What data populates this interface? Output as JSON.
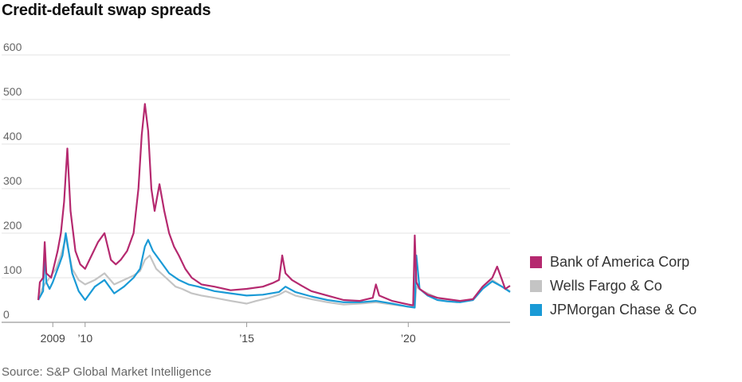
{
  "title": "Credit-default swap spreads",
  "source": "Source: S&P Global Market Intelligence",
  "chart_data": {
    "type": "line",
    "title": "Credit-default swap spreads",
    "xlabel": "",
    "ylabel": "",
    "ylim": [
      0,
      600
    ],
    "xlim": [
      2008.55,
      2023.15
    ],
    "yticks": [
      "600",
      "500",
      "400",
      "300",
      "200",
      "100",
      "0"
    ],
    "ytick_values": [
      600,
      500,
      400,
      300,
      200,
      100,
      0
    ],
    "xticks": [
      {
        "value": 2009,
        "label": "2009"
      },
      {
        "value": 2010,
        "label": "’10"
      },
      {
        "value": 2015,
        "label": "’15"
      },
      {
        "value": 2020,
        "label": "’20"
      }
    ],
    "grid": true,
    "legend_position": "right",
    "series": [
      {
        "name": "Wells Fargo & Co",
        "color": "#c4c4c4",
        "x": [
          2008.55,
          2008.7,
          2008.85,
          2009.0,
          2009.1,
          2009.25,
          2009.4,
          2009.6,
          2009.8,
          2010.0,
          2010.3,
          2010.6,
          2010.9,
          2011.2,
          2011.5,
          2011.7,
          2011.85,
          2012.0,
          2012.2,
          2012.5,
          2012.8,
          2013.0,
          2013.3,
          2013.6,
          2014.0,
          2014.5,
          2015.0,
          2015.3,
          2015.7,
          2016.0,
          2016.2,
          2016.5,
          2017.0,
          2017.5,
          2018.0,
          2018.5,
          2019.0,
          2019.5,
          2020.0,
          2020.2,
          2020.25,
          2020.4,
          2020.6,
          2020.9,
          2021.2,
          2021.5,
          2022.0,
          2022.3,
          2022.6,
          2022.9,
          2023.15
        ],
        "values": [
          55,
          80,
          95,
          110,
          120,
          150,
          190,
          120,
          95,
          85,
          95,
          110,
          85,
          95,
          105,
          115,
          140,
          150,
          120,
          100,
          80,
          75,
          65,
          60,
          55,
          48,
          42,
          48,
          55,
          62,
          70,
          60,
          52,
          45,
          40,
          42,
          45,
          40,
          35,
          36,
          80,
          72,
          65,
          55,
          48,
          45,
          50,
          75,
          95,
          80,
          70
        ]
      },
      {
        "name": "JPMorgan Chase & Co",
        "color": "#1a9ad6",
        "x": [
          2008.55,
          2008.7,
          2008.75,
          2008.8,
          2008.9,
          2009.0,
          2009.1,
          2009.2,
          2009.3,
          2009.4,
          2009.6,
          2009.8,
          2010.0,
          2010.3,
          2010.6,
          2010.9,
          2011.2,
          2011.5,
          2011.7,
          2011.85,
          2011.95,
          2012.1,
          2012.3,
          2012.6,
          2012.9,
          2013.2,
          2013.5,
          2014.0,
          2014.5,
          2015.0,
          2015.5,
          2016.0,
          2016.2,
          2016.5,
          2017.0,
          2017.5,
          2018.0,
          2018.5,
          2019.0,
          2019.5,
          2020.0,
          2020.2,
          2020.25,
          2020.35,
          2020.6,
          2020.9,
          2021.2,
          2021.6,
          2022.0,
          2022.3,
          2022.6,
          2022.9,
          2023.15
        ],
        "values": [
          50,
          70,
          160,
          90,
          75,
          90,
          110,
          130,
          150,
          200,
          110,
          70,
          50,
          80,
          95,
          65,
          80,
          100,
          120,
          170,
          185,
          160,
          140,
          110,
          95,
          85,
          80,
          70,
          65,
          60,
          62,
          68,
          80,
          68,
          58,
          50,
          45,
          45,
          48,
          42,
          35,
          33,
          150,
          75,
          60,
          50,
          47,
          45,
          50,
          75,
          92,
          80,
          68
        ]
      },
      {
        "name": "Bank of America Corp",
        "color": "#b5296f",
        "x": [
          2008.55,
          2008.6,
          2008.7,
          2008.75,
          2008.8,
          2008.95,
          2009.05,
          2009.15,
          2009.25,
          2009.35,
          2009.45,
          2009.55,
          2009.7,
          2009.85,
          2010.0,
          2010.2,
          2010.4,
          2010.6,
          2010.8,
          2010.95,
          2011.1,
          2011.3,
          2011.5,
          2011.65,
          2011.75,
          2011.85,
          2011.95,
          2012.05,
          2012.15,
          2012.3,
          2012.45,
          2012.6,
          2012.75,
          2012.9,
          2013.1,
          2013.3,
          2013.6,
          2014.0,
          2014.5,
          2015.0,
          2015.5,
          2015.8,
          2016.0,
          2016.1,
          2016.2,
          2016.4,
          2016.7,
          2017.0,
          2017.5,
          2018.0,
          2018.5,
          2018.9,
          2019.0,
          2019.1,
          2019.5,
          2020.0,
          2020.15,
          2020.2,
          2020.25,
          2020.35,
          2020.6,
          2020.9,
          2021.2,
          2021.6,
          2022.0,
          2022.3,
          2022.6,
          2022.75,
          2022.9,
          2023.0,
          2023.15
        ],
        "values": [
          50,
          90,
          100,
          180,
          110,
          100,
          130,
          160,
          200,
          270,
          390,
          250,
          160,
          130,
          120,
          150,
          180,
          200,
          140,
          130,
          140,
          160,
          200,
          300,
          420,
          490,
          430,
          300,
          250,
          310,
          250,
          200,
          170,
          150,
          120,
          100,
          85,
          80,
          72,
          75,
          80,
          88,
          95,
          150,
          110,
          95,
          82,
          70,
          60,
          50,
          48,
          55,
          85,
          60,
          48,
          40,
          38,
          195,
          90,
          75,
          62,
          55,
          52,
          48,
          52,
          80,
          100,
          125,
          95,
          75,
          82
        ]
      }
    ]
  }
}
